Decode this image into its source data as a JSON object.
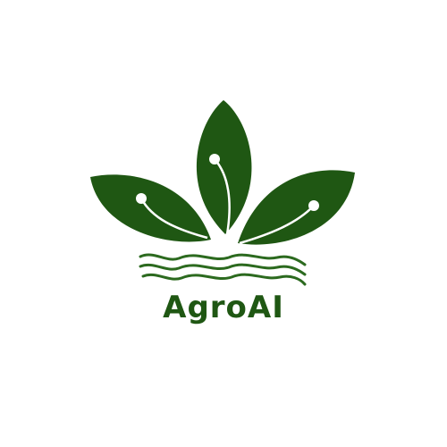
{
  "logo": {
    "brand_name": "AgroAI",
    "icon": "three-leaves-with-waves-icon",
    "colors": {
      "leaf": "#1f5713",
      "wave": "#2c6a1f",
      "vein": "#ffffff",
      "text": "#1f5713",
      "background": "#ffffff"
    }
  }
}
